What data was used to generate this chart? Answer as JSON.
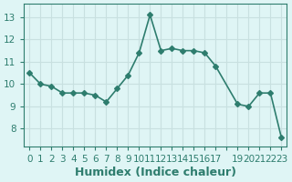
{
  "x": [
    0,
    1,
    2,
    3,
    4,
    5,
    6,
    7,
    8,
    9,
    10,
    11,
    12,
    13,
    14,
    15,
    16,
    17,
    19,
    20,
    21,
    22,
    23
  ],
  "y": [
    10.5,
    10.0,
    9.9,
    9.6,
    9.6,
    9.6,
    9.5,
    9.2,
    9.8,
    10.4,
    11.4,
    13.1,
    11.5,
    11.6,
    11.5,
    11.5,
    11.4,
    10.8,
    9.1,
    9.0,
    9.6,
    9.6,
    7.6
  ],
  "line_color": "#2e7d6e",
  "marker": "D",
  "markersize": 3,
  "linewidth": 1.2,
  "bg_color": "#dff5f5",
  "grid_color": "#c8e0e0",
  "xlabel": "Humidex (Indice chaleur)",
  "xticks": [
    0,
    1,
    2,
    3,
    4,
    5,
    6,
    7,
    8,
    9,
    10,
    11,
    12,
    13,
    14,
    15,
    16,
    17,
    18,
    19,
    20,
    21,
    22,
    23
  ],
  "xtick_labels": [
    "0",
    "1",
    "2",
    "3",
    "4",
    "5",
    "6",
    "7",
    "8",
    "9",
    "10",
    "11",
    "12",
    "13",
    "14",
    "15",
    "16",
    "17",
    "",
    "19",
    "20",
    "21",
    "22",
    "23"
  ],
  "yticks": [
    8,
    9,
    10,
    11,
    12,
    13
  ],
  "ylim": [
    7.2,
    13.6
  ],
  "xlim": [
    -0.5,
    23.5
  ],
  "xlabel_fontsize": 9,
  "tick_fontsize": 7.5,
  "axis_color": "#2e7d6e"
}
